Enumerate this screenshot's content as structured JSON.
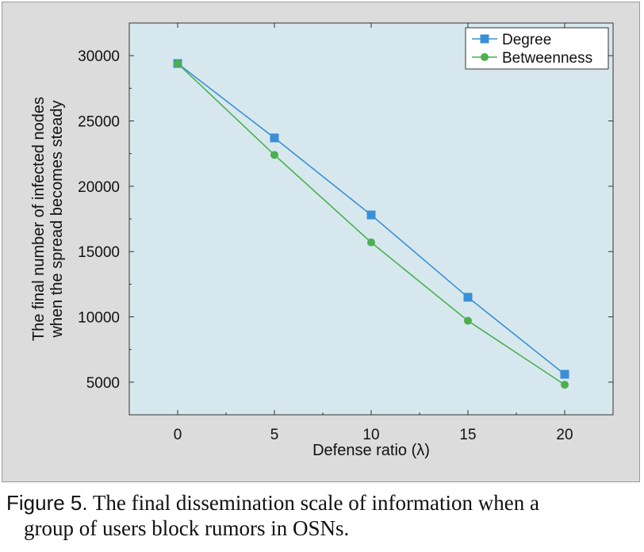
{
  "figure": {
    "caption_label": "Figure 5.",
    "caption_text_line1": "The final dissemination scale of information when a",
    "caption_text_line2": "group of users block rumors in OSNs."
  },
  "chart_data": {
    "type": "line",
    "xlabel": "Defense ratio (λ)",
    "ylabel_line1": "The final number of infected nodes",
    "ylabel_line2": "when the spread becomes steady",
    "x": [
      0,
      5,
      10,
      15,
      20
    ],
    "x_ticks": [
      0,
      5,
      10,
      15,
      20
    ],
    "y_ticks": [
      5000,
      10000,
      15000,
      20000,
      25000,
      30000
    ],
    "xlim": [
      -2.5,
      22.5
    ],
    "ylim": [
      2500,
      32500
    ],
    "grid": false,
    "legend_position": "top-right",
    "plot_background": "#d6e8ee",
    "series": [
      {
        "name": "Degree",
        "marker": "square",
        "color": "#3a8fd6",
        "values": [
          29400,
          23700,
          17800,
          11500,
          5600
        ]
      },
      {
        "name": "Betweenness",
        "marker": "circle",
        "color": "#4caf50",
        "values": [
          29400,
          22400,
          15700,
          9700,
          4800
        ]
      }
    ]
  }
}
